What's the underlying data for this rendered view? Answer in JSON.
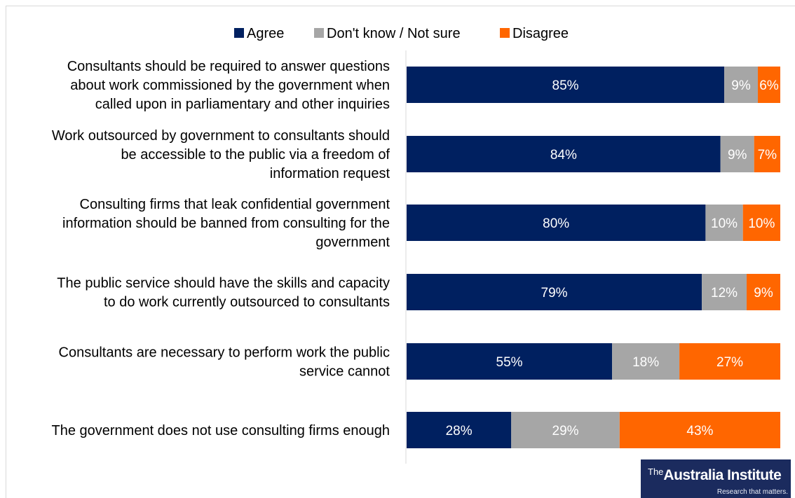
{
  "chart_data": {
    "type": "bar",
    "orientation": "horizontal",
    "stacked": true,
    "title": "",
    "xlabel": "",
    "ylabel": "",
    "xlim": [
      0,
      100
    ],
    "legend_position": "top",
    "grid": false,
    "categories": [
      "Consultants should be required to answer questions about work commissioned by the government when called upon in parliamentary and other inquiries",
      "Work outsourced by government to consultants should be accessible to the public via a freedom of information request",
      "Consulting firms that leak confidential government information should be banned from consulting for the government",
      "The public service should have the skills and capacity to do work currently outsourced to consultants",
      "Consultants are necessary to perform work the public service cannot",
      "The government does not use consulting firms enough"
    ],
    "category_lines": [
      [
        "Consultants should be required to answer questions",
        "about work commissioned by the government when",
        "called upon in parliamentary and other inquiries"
      ],
      [
        "Work outsourced by government to consultants should",
        "be accessible to the public via a freedom of",
        "information request"
      ],
      [
        "Consulting firms that leak confidential government",
        "information should be banned from consulting for the",
        "government"
      ],
      [
        "The public service should have the skills and capacity",
        "to do work currently outsourced to consultants"
      ],
      [
        "Consultants are necessary to perform work the public",
        "service cannot"
      ],
      [
        "The government does not use consulting firms enough"
      ]
    ],
    "series": [
      {
        "name": "Agree",
        "color": "#002060",
        "values": [
          85,
          84,
          80,
          79,
          55,
          28
        ],
        "labels": [
          "85%",
          "84%",
          "80%",
          "79%",
          "55%",
          "28%"
        ]
      },
      {
        "name": "Don't know / Not sure",
        "color": "#a6a6a6",
        "values": [
          9,
          9,
          10,
          12,
          18,
          29
        ],
        "labels": [
          "9%",
          "9%",
          "10%",
          "12%",
          "18%",
          "29%"
        ]
      },
      {
        "name": "Disagree",
        "color": "#ff6600",
        "values": [
          6,
          7,
          10,
          9,
          27,
          43
        ],
        "labels": [
          "6%",
          "7%",
          "10%",
          "9%",
          "27%",
          "43%"
        ]
      }
    ]
  },
  "logo": {
    "prefix": "The",
    "name": "Australia Institute",
    "tagline": "Research that matters."
  }
}
